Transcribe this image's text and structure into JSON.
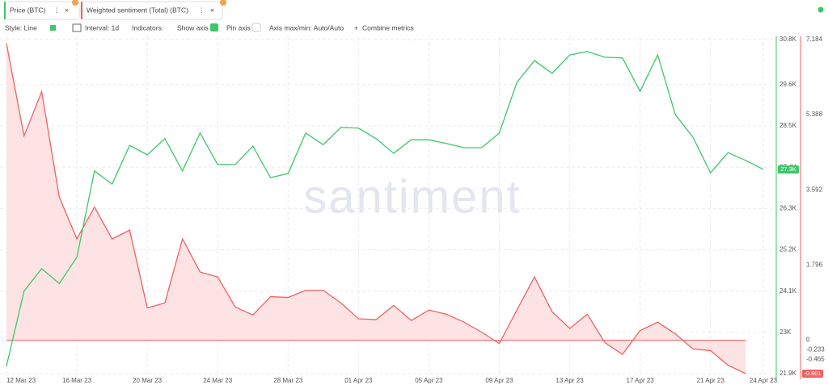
{
  "tabs": [
    "Price (BTC)",
    "Weighted sentiment (Total) (BTC)"
  ],
  "toolbar": {
    "style": "Style: Line",
    "interval": "Interval: 1d",
    "indicators": "Indicators:",
    "show_axis": "Show axis",
    "pin_axis": "Pin axis",
    "axis_minmax": "Axis max/min: Auto/Auto",
    "combine": "Combine metrics"
  },
  "watermark": "santiment",
  "chart_data": {
    "type": "line",
    "categories": [
      "12 Mar 23",
      null,
      null,
      null,
      "16 Mar 23",
      null,
      null,
      null,
      "20 Mar 23",
      null,
      null,
      null,
      "24 Mar 23",
      null,
      null,
      null,
      "28 Mar 23",
      null,
      null,
      null,
      "01 Apr 23",
      null,
      null,
      null,
      "05 Apr 23",
      null,
      null,
      null,
      "09 Apr 23",
      null,
      null,
      null,
      "13 Apr 23",
      null,
      null,
      null,
      "17 Apr 23",
      null,
      null,
      null,
      "21 Apr 23",
      null,
      null,
      "24 Apr 23"
    ],
    "series": [
      {
        "name": "Price (BTC)",
        "color": "#3cc76a",
        "last_label": "27.3K",
        "values": [
          22100,
          24100,
          24700,
          24300,
          25000,
          27300,
          26950,
          27980,
          27730,
          28160,
          27300,
          28310,
          27470,
          27470,
          27960,
          27120,
          27230,
          28310,
          28000,
          28460,
          28440,
          28160,
          27770,
          28130,
          28130,
          28030,
          27920,
          27920,
          28310,
          29660,
          30240,
          29900,
          30390,
          30480,
          30330,
          30310,
          29420,
          30390,
          28800,
          28200,
          27250,
          27790,
          27580,
          27340
        ]
      },
      {
        "name": "Weighted sentiment (Total) (BTC)",
        "color": "#f06262",
        "axis": "y2",
        "last_label": "-0.801",
        "values": [
          7.09,
          4.88,
          5.94,
          3.42,
          2.42,
          3.18,
          2.42,
          2.63,
          0.77,
          0.89,
          2.42,
          1.63,
          1.51,
          0.79,
          0.6,
          1.04,
          1.02,
          1.19,
          1.19,
          0.89,
          0.51,
          0.49,
          0.83,
          0.47,
          0.72,
          0.62,
          0.43,
          0.19,
          -0.08,
          0.72,
          1.51,
          0.68,
          0.28,
          0.62,
          -0.06,
          -0.34,
          0.23,
          0.43,
          0.15,
          -0.21,
          -0.25,
          -0.6,
          -0.801,
          null
        ]
      }
    ],
    "ylim": [
      21900,
      30800
    ],
    "yticks": [
      {
        "value": 30800,
        "label": "30.8K"
      },
      {
        "value": 29600,
        "label": "29.6K"
      },
      {
        "value": 28500,
        "label": "28.5K"
      },
      {
        "value": 27400,
        "label": "27.4K"
      },
      {
        "value": 26300,
        "label": "26.3K"
      },
      {
        "value": 25200,
        "label": "25.2K"
      },
      {
        "value": 24100,
        "label": "24.1K"
      },
      {
        "value": 23000,
        "label": "23K"
      },
      {
        "value": 21900,
        "label": "21.9K"
      }
    ],
    "y2lim": [
      -0.801,
      7.184
    ],
    "y2ticks": [
      7.184,
      5.388,
      3.592,
      1.796,
      0,
      -0.233,
      -0.465
    ],
    "grid": true
  }
}
